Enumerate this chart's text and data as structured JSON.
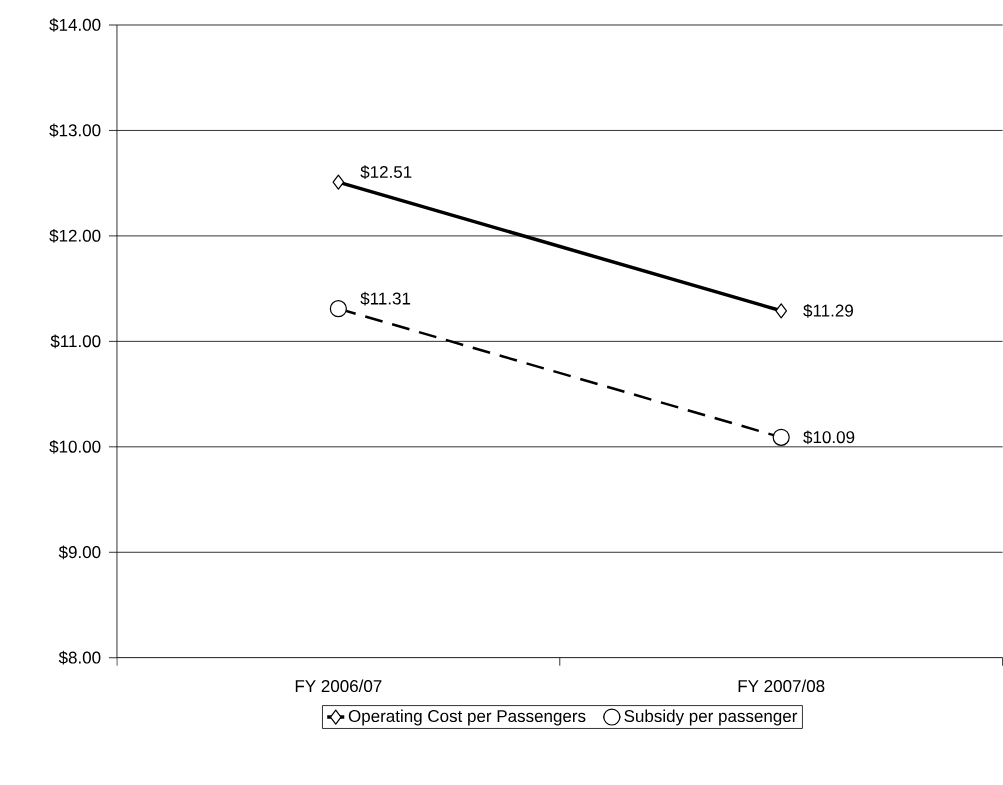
{
  "chart_data": {
    "type": "line",
    "categories": [
      "FY 2006/07",
      "FY 2007/08"
    ],
    "series": [
      {
        "name": "Operating Cost per Passengers",
        "color": "#000000",
        "values": [
          12.51,
          11.29
        ],
        "value_labels": [
          "$12.51",
          "$11.29"
        ],
        "marker": "diamond",
        "line_style": "solid"
      },
      {
        "name": "Subsidy per passenger",
        "color": "#000000",
        "values": [
          11.31,
          10.09
        ],
        "value_labels": [
          "$11.31",
          "$10.09"
        ],
        "marker": "circle",
        "line_style": "dashed"
      }
    ],
    "ylim": [
      8,
      14
    ],
    "yticks": [
      {
        "value": 8,
        "label": "$8.00"
      },
      {
        "value": 9,
        "label": "$9.00"
      },
      {
        "value": 10,
        "label": "$10.00"
      },
      {
        "value": 11,
        "label": "$11.00"
      },
      {
        "value": 12,
        "label": "$12.00"
      },
      {
        "value": 13,
        "label": "$13.00"
      },
      {
        "value": 14,
        "label": "$14.00"
      }
    ],
    "grid": "y",
    "legend": "bottom"
  }
}
